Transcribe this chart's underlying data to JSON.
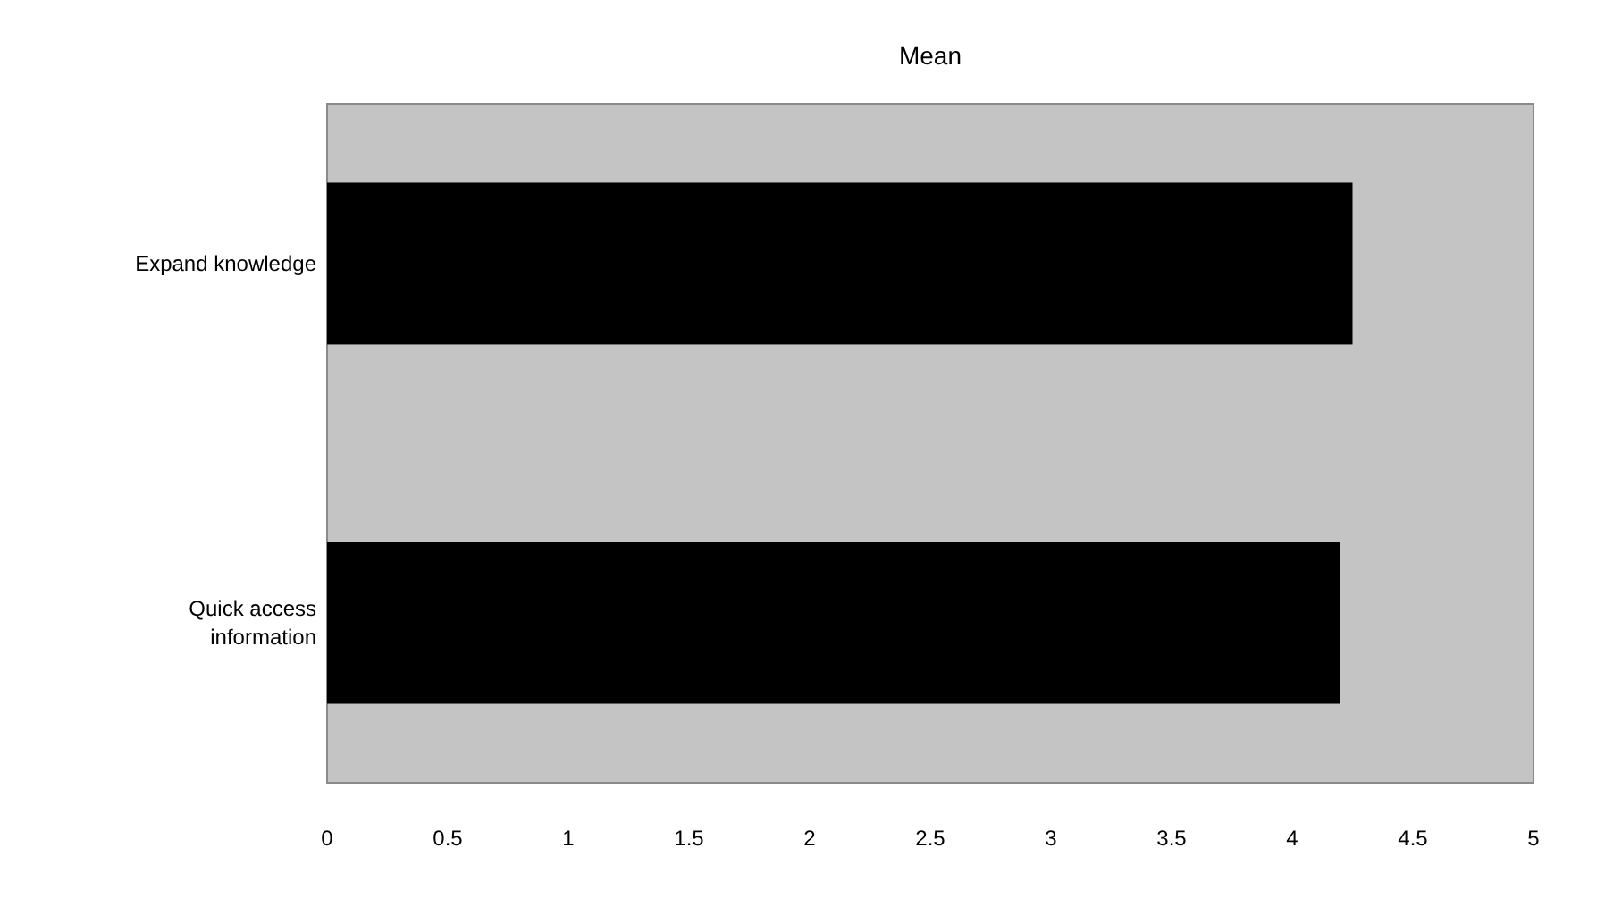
{
  "chart_data": {
    "type": "bar",
    "orientation": "horizontal",
    "title": "Mean",
    "categories": [
      "Expand knowledge",
      "Quick access information"
    ],
    "values": [
      4.25,
      4.2
    ],
    "color": "#000000",
    "xlim": [
      0,
      5
    ],
    "xticks": [
      0,
      0.5,
      1,
      1.5,
      2,
      2.5,
      3,
      3.5,
      4,
      4.5,
      5
    ]
  }
}
